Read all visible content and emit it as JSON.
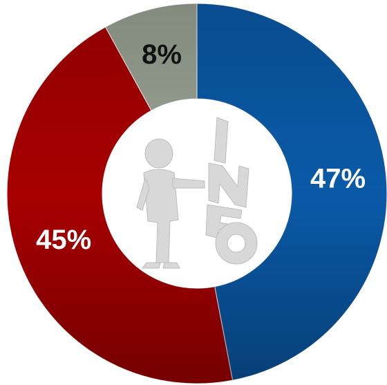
{
  "chart_data": {
    "type": "donut",
    "values": [
      47,
      45,
      8
    ],
    "value_labels": [
      "47%",
      "45%",
      "8%"
    ],
    "colors": [
      "#0a5aa8",
      "#a80000",
      "#9aa394"
    ]
  }
}
